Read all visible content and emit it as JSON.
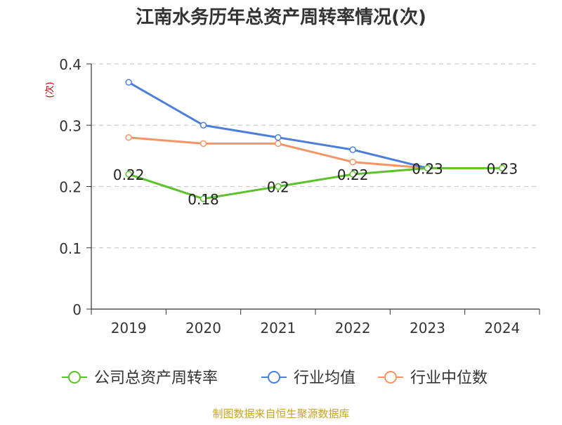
{
  "title": "江南水务历年总资产周转率情况(次)",
  "source": "制图数据来自恒生聚源数据库",
  "chart_data": {
    "type": "line",
    "title": "江南水务历年总资产周转率情况(次)",
    "ylabel": "(次)",
    "xlabel": "",
    "categories": [
      "2019",
      "2020",
      "2021",
      "2022",
      "2023",
      "2024"
    ],
    "ylim": [
      0,
      0.4
    ],
    "yticks": [
      "0",
      "0.1",
      "0.2",
      "0.3",
      "0.4"
    ],
    "grid": true,
    "legend_position": "bottom",
    "series": [
      {
        "name": "公司总资产周转率",
        "color": "#5cc22a",
        "values": [
          0.22,
          0.18,
          0.2,
          0.22,
          0.23,
          0.23
        ],
        "labels": [
          "0.22",
          "0.18",
          "0.2",
          "0.22",
          "0.23",
          "0.23"
        ]
      },
      {
        "name": "行业均值",
        "color": "#4b7fd8",
        "values": [
          0.37,
          0.3,
          0.28,
          0.26,
          0.23,
          null
        ]
      },
      {
        "name": "行业中位数",
        "color": "#f59566",
        "values": [
          0.28,
          0.27,
          0.27,
          0.24,
          0.23,
          null
        ]
      }
    ]
  }
}
